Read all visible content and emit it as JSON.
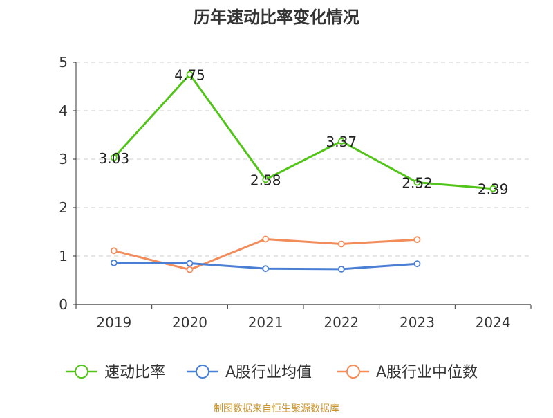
{
  "chart_data": {
    "type": "line",
    "title": "历年速动比率变化情况",
    "categories": [
      "2019",
      "2020",
      "2021",
      "2022",
      "2023",
      "2024"
    ],
    "ylim": [
      0,
      5
    ],
    "yticks": [
      0,
      1,
      2,
      3,
      4,
      5
    ],
    "grid": true,
    "legend_position": "bottom",
    "series": [
      {
        "name": "速动比率",
        "color": "#52c41a",
        "values": [
          3.03,
          4.75,
          2.58,
          3.37,
          2.52,
          2.39
        ],
        "show_labels": true
      },
      {
        "name": "A股行业均值",
        "color": "#4a7fd4",
        "values": [
          0.86,
          0.85,
          0.74,
          0.73,
          0.84,
          null
        ],
        "show_labels": false
      },
      {
        "name": "A股行业中位数",
        "color": "#f28c5a",
        "values": [
          1.11,
          0.72,
          1.35,
          1.25,
          1.34,
          null
        ],
        "show_labels": false
      }
    ]
  },
  "footer": {
    "source": "制图数据来自恒生聚源数据库"
  },
  "colors": {
    "title": "#333333",
    "axis": "#333333",
    "grid": "#cccccc",
    "footer": "#c8962d"
  }
}
